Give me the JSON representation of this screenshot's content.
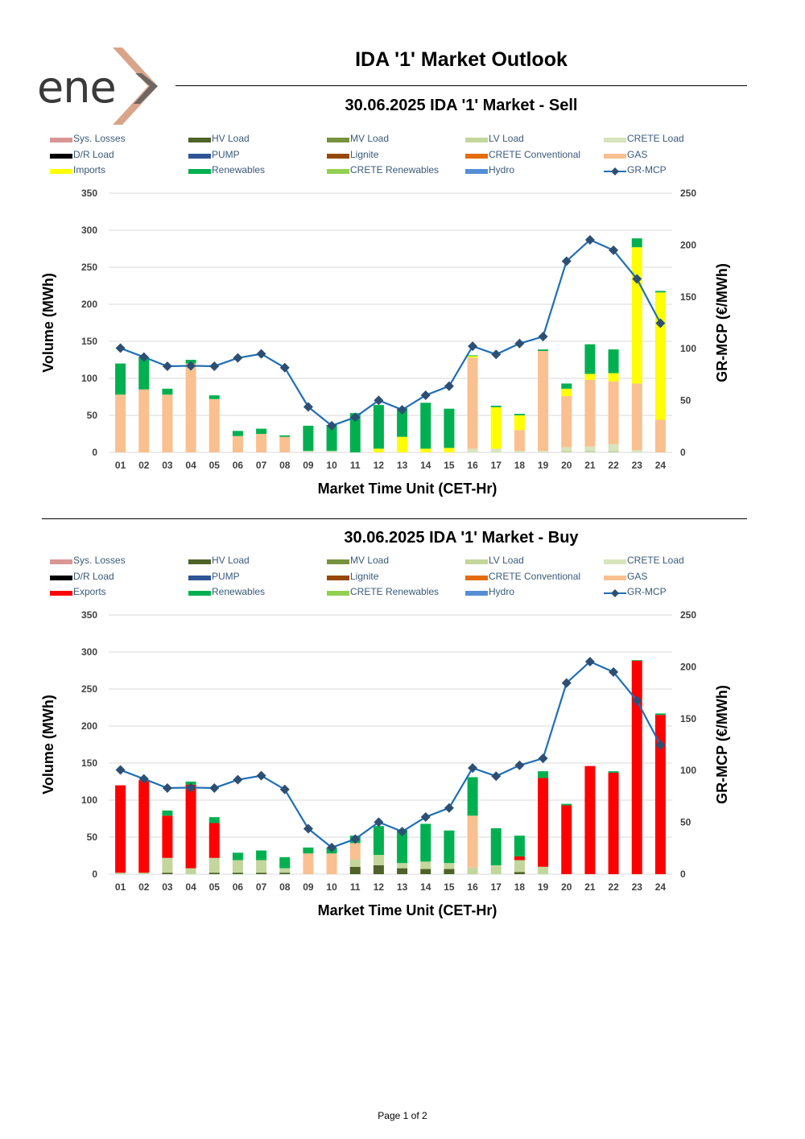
{
  "logo": {
    "text": "ene",
    "name": "enex"
  },
  "header": {
    "title": "IDA '1' Market Outlook"
  },
  "legend_colors": {
    "Sys. Losses": "#d99694",
    "HV Load": "#4f6228",
    "MV Load": "#76923c",
    "LV Load": "#c3d69b",
    "CRETE Load": "#d7e4bd",
    "D/R Load": "#000000",
    "PUMP": "#2f5597",
    "Lignite": "#974806",
    "CRETE Conventional": "#e46c0a",
    "GAS": "#fac090",
    "Imports": "#ffff00",
    "Exports": "#ff0000",
    "Renewables": "#00b050",
    "CRETE Renewables": "#92d050",
    "Hydro": "#558ed5",
    "GR-MCP": "#1f6fb5"
  },
  "charts": [
    {
      "title": "30.06.2025  IDA '1' Market - Sell",
      "legend": [
        "Sys. Losses",
        "HV Load",
        "MV Load",
        "LV Load",
        "CRETE Load",
        "D/R Load",
        "PUMP",
        "Lignite",
        "CRETE Conventional",
        "GAS",
        "Imports",
        "Renewables",
        "CRETE Renewables",
        "Hydro",
        "GR-MCP"
      ]
    },
    {
      "title": "30.06.2025  IDA '1' Market - Buy",
      "legend": [
        "Sys. Losses",
        "HV Load",
        "MV Load",
        "LV Load",
        "CRETE Load",
        "D/R Load",
        "PUMP",
        "Lignite",
        "CRETE Conventional",
        "GAS",
        "Exports",
        "Renewables",
        "CRETE Renewables",
        "Hydro",
        "GR-MCP"
      ]
    }
  ],
  "chart_data": [
    {
      "type": "bar",
      "stacked": true,
      "title": "30.06.2025  IDA '1' Market - Sell",
      "xlabel": "Market Time Unit (CET-Hr)",
      "ylabel": "Volume (MWh)",
      "y2label": "GR-MCP (€/MWh)",
      "ylim": [
        0,
        350
      ],
      "y2lim": [
        0,
        250
      ],
      "yticks": [
        0,
        50,
        100,
        150,
        200,
        250,
        300,
        350
      ],
      "y2ticks": [
        0,
        50,
        100,
        150,
        200,
        250
      ],
      "grid": true,
      "categories": [
        "01",
        "02",
        "03",
        "04",
        "05",
        "06",
        "07",
        "08",
        "09",
        "10",
        "11",
        "12",
        "13",
        "14",
        "15",
        "16",
        "17",
        "18",
        "19",
        "20",
        "21",
        "22",
        "23",
        "24"
      ],
      "series": [
        {
          "name": "LV Load",
          "values": [
            0,
            0,
            0,
            0,
            0,
            0,
            0,
            0,
            0,
            0,
            0,
            0,
            0,
            0,
            0,
            0,
            0,
            0,
            0,
            2,
            2,
            2,
            0,
            0
          ]
        },
        {
          "name": "CRETE Load",
          "values": [
            0,
            0,
            0,
            0,
            0,
            0,
            0,
            0,
            2,
            2,
            0,
            0,
            0,
            0,
            0,
            5,
            5,
            2,
            2,
            5,
            6,
            9,
            3,
            0
          ]
        },
        {
          "name": "GAS",
          "values": [
            78,
            85,
            78,
            120,
            72,
            22,
            25,
            21,
            0,
            0,
            0,
            0,
            0,
            0,
            0,
            123,
            0,
            28,
            135,
            69,
            90,
            85,
            90,
            44
          ]
        },
        {
          "name": "Imports",
          "values": [
            0,
            0,
            0,
            0,
            0,
            0,
            0,
            0,
            0,
            0,
            0,
            5,
            21,
            5,
            6,
            2,
            56,
            20,
            0,
            10,
            8,
            11,
            184,
            172
          ]
        },
        {
          "name": "Renewables",
          "values": [
            42,
            44,
            8,
            5,
            5,
            7,
            7,
            2,
            34,
            35,
            53,
            59,
            39,
            62,
            53,
            1,
            2,
            2,
            2,
            7,
            40,
            32,
            12,
            2
          ]
        }
      ],
      "line": {
        "name": "GR-MCP",
        "axis": "y2",
        "values": [
          100.5,
          91.9,
          83.1,
          83.5,
          83.1,
          91.1,
          95.0,
          81.7,
          43.9,
          25.7,
          33.9,
          50.2,
          41.1,
          55.1,
          63.9,
          102.4,
          94.5,
          105.0,
          111.7,
          184.4,
          205.0,
          195.0,
          167.3,
          124.6
        ]
      }
    },
    {
      "type": "bar",
      "stacked": true,
      "title": "30.06.2025  IDA '1' Market - Buy",
      "xlabel": "Market Time Unit (CET-Hr)",
      "ylabel": "Volume (MWh)",
      "y2label": "GR-MCP (€/MWh)",
      "ylim": [
        0,
        350
      ],
      "y2lim": [
        0,
        250
      ],
      "yticks": [
        0,
        50,
        100,
        150,
        200,
        250,
        300,
        350
      ],
      "y2ticks": [
        0,
        50,
        100,
        150,
        200,
        250
      ],
      "grid": true,
      "categories": [
        "01",
        "02",
        "03",
        "04",
        "05",
        "06",
        "07",
        "08",
        "09",
        "10",
        "11",
        "12",
        "13",
        "14",
        "15",
        "16",
        "17",
        "18",
        "19",
        "20",
        "21",
        "22",
        "23",
        "24"
      ],
      "series": [
        {
          "name": "HV Load",
          "values": [
            0,
            0,
            2,
            0,
            2,
            2,
            2,
            2,
            0,
            0,
            10,
            12,
            8,
            7,
            7,
            0,
            0,
            3,
            0,
            0,
            0,
            0,
            0,
            0
          ]
        },
        {
          "name": "MV Load",
          "values": [
            0,
            0,
            0,
            0,
            0,
            0,
            0,
            0,
            0,
            0,
            0,
            0,
            0,
            0,
            0,
            0,
            0,
            0,
            0,
            0,
            0,
            0,
            0,
            0
          ]
        },
        {
          "name": "LV Load",
          "values": [
            2,
            2,
            20,
            8,
            20,
            17,
            17,
            6,
            0,
            0,
            10,
            14,
            7,
            10,
            8,
            9,
            12,
            16,
            10,
            0,
            0,
            0,
            0,
            0
          ]
        },
        {
          "name": "GAS",
          "values": [
            0,
            0,
            0,
            0,
            0,
            0,
            0,
            0,
            28,
            28,
            22,
            0,
            0,
            0,
            0,
            70,
            0,
            0,
            0,
            0,
            0,
            0,
            0,
            0
          ]
        },
        {
          "name": "Exports",
          "values": [
            118,
            125,
            57,
            113,
            47,
            0,
            0,
            0,
            0,
            0,
            0,
            0,
            0,
            0,
            0,
            0,
            0,
            5,
            120,
            93,
            146,
            137,
            288,
            215
          ]
        },
        {
          "name": "Renewables",
          "values": [
            0,
            0,
            7,
            4,
            8,
            10,
            13,
            15,
            8,
            8,
            10,
            39,
            45,
            51,
            44,
            52,
            50,
            28,
            9,
            2,
            0,
            2,
            1,
            2
          ]
        }
      ],
      "line": {
        "name": "GR-MCP",
        "axis": "y2",
        "values": [
          100.5,
          91.9,
          83.1,
          83.5,
          83.1,
          91.1,
          95.0,
          81.7,
          43.9,
          25.7,
          33.9,
          50.2,
          41.1,
          55.1,
          63.9,
          102.4,
          94.5,
          105.0,
          111.7,
          184.4,
          205.0,
          195.0,
          167.3,
          124.6
        ]
      }
    }
  ],
  "footer": {
    "page": "Page 1 of 2"
  }
}
